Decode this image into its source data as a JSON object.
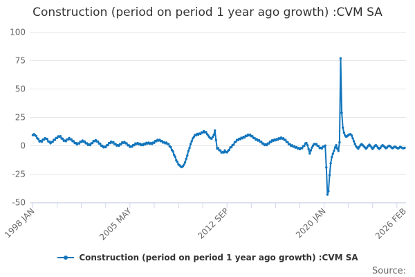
{
  "title": "Construction (period on period 1 year ago growth) :CVM SA",
  "source_label": "Source:",
  "legend": {
    "series_label": "Construction (period on period 1 year ago growth) :CVM SA"
  },
  "colors": {
    "series": "#1275bc",
    "grid": "#e6e6e6",
    "axis": "#ccd6eb",
    "label": "#666666",
    "title": "#333333"
  },
  "chart_data": {
    "type": "line",
    "title": "Construction (period on period 1 year ago growth) :CVM SA",
    "xlabel": "",
    "ylabel": "",
    "frequency": "monthly",
    "x_start": "1998 JAN",
    "x_end": "2026 FEB",
    "x_tick_labels": [
      "1998 JAN",
      "2005 MAY",
      "2012 SEP",
      "2020 JAN",
      "2026 FEB"
    ],
    "x_tick_label_indices": [
      0,
      88,
      176,
      264,
      337
    ],
    "minor_tick_interval_months": 22,
    "y_ticks": [
      100,
      75,
      50,
      25,
      0,
      -25,
      -50
    ],
    "ylim": [
      -50,
      100
    ],
    "grid": true,
    "legend_position": "bottom",
    "series": [
      {
        "name": "Construction (period on period 1 year ago growth) :CVM SA",
        "values_monthly": [
          9.4,
          10.2,
          9.2,
          8.6,
          6.6,
          5.8,
          3.8,
          4.2,
          3.6,
          5.4,
          5.4,
          6.6,
          6.2,
          6.0,
          3.8,
          3.6,
          2.2,
          3.3,
          3.4,
          5.2,
          5.2,
          6.8,
          6.8,
          8.3,
          8.0,
          8.4,
          6.4,
          6.2,
          4.4,
          4.6,
          4.0,
          5.6,
          5.6,
          6.8,
          5.6,
          5.6,
          4.0,
          4.0,
          2.4,
          2.4,
          1.2,
          2.2,
          2.0,
          3.6,
          3.4,
          4.6,
          3.6,
          3.8,
          2.2,
          2.2,
          0.8,
          1.2,
          0.6,
          2.2,
          2.4,
          4.2,
          4.0,
          5.0,
          3.8,
          3.8,
          2.0,
          1.8,
          0.0,
          0.0,
          -1.4,
          -0.8,
          -1.2,
          0.4,
          0.6,
          2.4,
          2.4,
          3.6,
          2.8,
          3.2,
          1.6,
          1.6,
          0.2,
          0.6,
          0.0,
          1.4,
          1.4,
          3.0,
          2.6,
          3.4,
          2.2,
          2.2,
          0.4,
          0.4,
          -1.0,
          -0.4,
          -0.8,
          0.6,
          0.6,
          2.0,
          1.6,
          2.4,
          1.4,
          1.8,
          0.6,
          1.2,
          0.6,
          1.8,
          1.4,
          2.6,
          2.0,
          2.8,
          1.8,
          2.4,
          1.6,
          2.8,
          2.6,
          4.2,
          4.0,
          5.2,
          4.6,
          5.2,
          4.0,
          4.2,
          2.8,
          3.2,
          2.2,
          2.8,
          1.6,
          1.6,
          -0.4,
          -1.2,
          -3.8,
          -5.0,
          -8.0,
          -9.6,
          -12.8,
          -14.2,
          -16.4,
          -17.2,
          -18.3,
          -18.7,
          -18.0,
          -16.6,
          -14.6,
          -11.6,
          -8.6,
          -4.5,
          -2.0,
          1.5,
          4.0,
          6.5,
          8.0,
          9.6,
          9.2,
          10.4,
          9.8,
          10.8,
          10.4,
          11.8,
          11.6,
          12.8,
          11.8,
          12.0,
          10.2,
          9.0,
          7.6,
          6.6,
          6.2,
          7.8,
          9.5,
          13.5,
          5.0,
          -2.5,
          -2.1,
          -3.9,
          -4.1,
          -5.9,
          -5.6,
          -5.9,
          -4.1,
          -5.4,
          -5.8,
          -4.4,
          -3.6,
          -1.4,
          -1.2,
          0.6,
          1.0,
          3.2,
          3.6,
          5.2,
          5.0,
          6.2,
          5.8,
          7.0,
          6.6,
          7.8,
          7.4,
          8.8,
          8.6,
          9.8,
          9.2,
          9.8,
          8.4,
          8.4,
          6.8,
          6.8,
          5.4,
          5.8,
          4.6,
          5.0,
          3.6,
          3.6,
          2.0,
          2.0,
          0.6,
          1.2,
          0.6,
          2.0,
          2.0,
          3.6,
          3.4,
          4.8,
          4.4,
          5.4,
          4.8,
          5.8,
          5.4,
          6.6,
          6.2,
          7.2,
          6.2,
          6.6,
          5.2,
          5.2,
          3.4,
          3.2,
          1.4,
          1.4,
          0.0,
          0.4,
          -0.8,
          -0.4,
          -1.6,
          -1.2,
          -2.4,
          -2.0,
          -3.0,
          -2.0,
          -2.2,
          -0.4,
          0.0,
          2.0,
          2.4,
          0.4,
          -3.0,
          -6.8,
          -4.0,
          -1.6,
          0.2,
          1.6,
          1.2,
          1.6,
          0.0,
          -0.2,
          -2.0,
          -1.8,
          -2.4,
          -0.8,
          -0.8,
          0.2,
          -19.0,
          -43.0,
          -40.0,
          -26.0,
          -15.5,
          -10.0,
          -7.0,
          -4.5,
          -1.5,
          0.5,
          -2.5,
          -4.5,
          3.0,
          77.0,
          29.0,
          16.0,
          11.5,
          9.0,
          8.0,
          8.5,
          9.5,
          10.0,
          10.2,
          9.0,
          6.5,
          4.0,
          1.5,
          -0.5,
          -1.5,
          -2.5,
          -1.0,
          0.5,
          1.5,
          0.5,
          -0.5,
          -1.5,
          -2.5,
          -1.5,
          0.0,
          1.0,
          0.0,
          -1.5,
          -2.8,
          -1.5,
          0.0,
          0.5,
          -0.5,
          -1.8,
          -2.8,
          -1.8,
          -0.5,
          0.5,
          -0.2,
          -1.2,
          -2.2,
          -1.5,
          -0.5,
          0.0,
          -0.5,
          -1.5,
          -2.2,
          -1.5,
          -0.8,
          -1.2,
          -1.8,
          -2.4,
          -1.8,
          -1.0,
          -1.4,
          -2.0,
          -2.2,
          -1.8
        ]
      }
    ]
  }
}
